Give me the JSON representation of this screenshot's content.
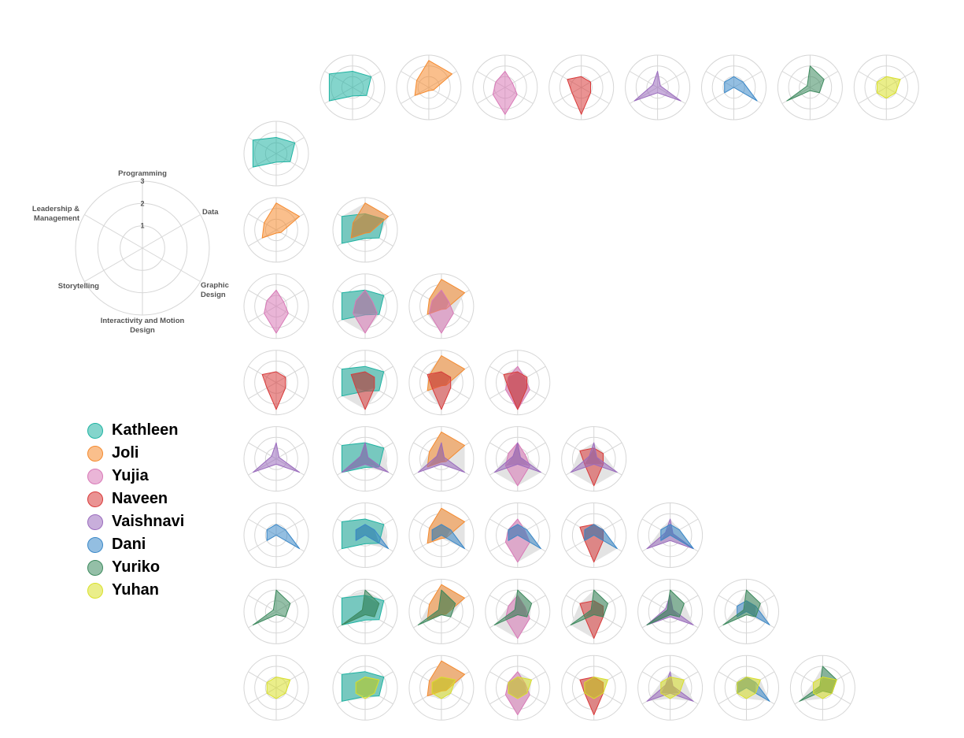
{
  "chart_data": {
    "type": "radar-matrix",
    "axes": [
      "Programming",
      "Data",
      "Graphic Design",
      "Interactivity and Motion Design",
      "Storytelling",
      "Leadership & Management"
    ],
    "axis_labels": [
      [
        "Programming"
      ],
      [
        "Data"
      ],
      [
        "Graphic",
        "Design"
      ],
      [
        "Interactivity and Motion",
        "Design"
      ],
      [
        "Storytelling"
      ],
      [
        "Leadership &",
        "Management"
      ]
    ],
    "scale_max": 3,
    "scale_ticks": [
      "1",
      "2",
      "3"
    ],
    "grid_shape": "circle",
    "matrix_layout": "lower-triangle",
    "legend_position": "left",
    "series": [
      {
        "name": "Kathleen",
        "color": "#1fb3a2",
        "values": [
          1.5,
          2.0,
          1.5,
          0.8,
          2.5,
          2.5
        ]
      },
      {
        "name": "Joli",
        "color": "#f58a2e",
        "values": [
          2.5,
          2.5,
          0.5,
          0.3,
          1.5,
          1.3
        ]
      },
      {
        "name": "Yujia",
        "color": "#d879b7",
        "values": [
          1.5,
          0.8,
          1.3,
          2.5,
          1.3,
          1.0
        ]
      },
      {
        "name": "Naveen",
        "color": "#d83a3a",
        "values": [
          1.0,
          1.0,
          1.0,
          2.5,
          1.0,
          1.5
        ]
      },
      {
        "name": "Vaishnavi",
        "color": "#9a6bbd",
        "values": [
          1.5,
          0.3,
          2.5,
          0.5,
          2.5,
          0.5
        ]
      },
      {
        "name": "Dani",
        "color": "#3a88c8",
        "values": [
          1.0,
          1.0,
          2.5,
          0.0,
          1.0,
          1.0
        ]
      },
      {
        "name": "Yuriko",
        "color": "#3d8a5e",
        "values": [
          2.0,
          1.5,
          1.0,
          0.3,
          2.5,
          0.3
        ]
      },
      {
        "name": "Yuhan",
        "color": "#d9e02a",
        "values": [
          1.0,
          1.5,
          1.0,
          1.0,
          1.0,
          1.0
        ]
      }
    ]
  },
  "legend": {
    "items": [
      {
        "label": "Kathleen",
        "color": "#1fb3a2"
      },
      {
        "label": "Joli",
        "color": "#f58a2e"
      },
      {
        "label": "Yujia",
        "color": "#d879b7"
      },
      {
        "label": "Naveen",
        "color": "#d83a3a"
      },
      {
        "label": "Vaishnavi",
        "color": "#9a6bbd"
      },
      {
        "label": "Dani",
        "color": "#3a88c8"
      },
      {
        "label": "Yuriko",
        "color": "#3d8a5e"
      },
      {
        "label": "Yuhan",
        "color": "#d9e02a"
      }
    ]
  }
}
